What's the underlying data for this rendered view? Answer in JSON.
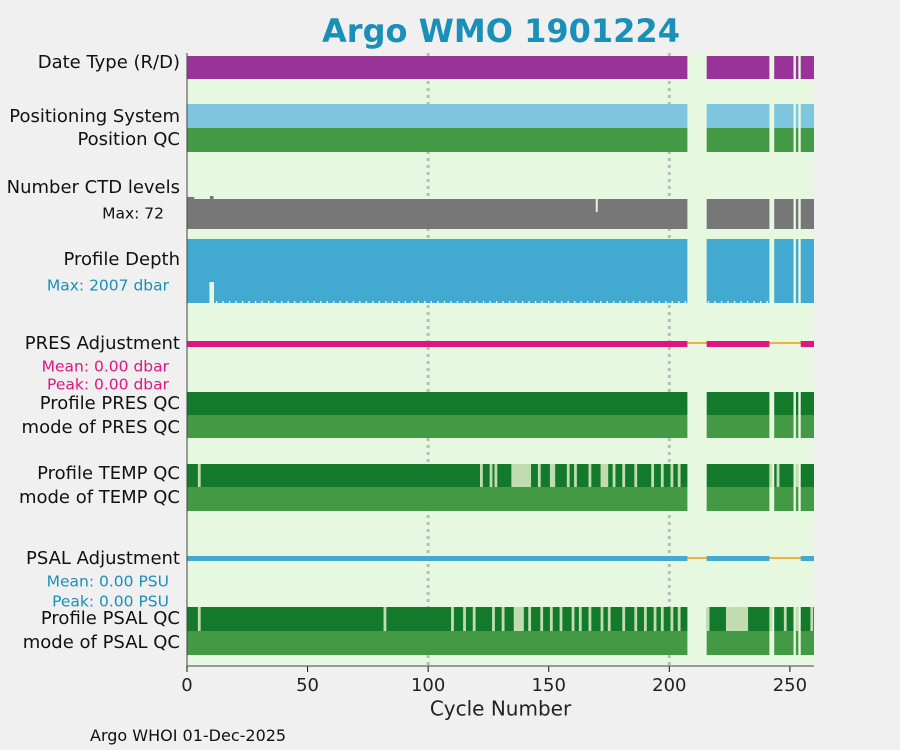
{
  "chart_data": {
    "type": "timeline",
    "title": "Argo WMO 1901224",
    "xlabel": "Cycle Number",
    "xlim": [
      0,
      260
    ],
    "xticks": [
      0,
      50,
      100,
      150,
      200,
      250
    ],
    "vlines": [
      100,
      200
    ],
    "present_segments": [
      [
        0,
        207.5
      ],
      [
        215.5,
        241.5
      ],
      [
        243.5,
        251.5
      ],
      [
        252.5,
        253.5
      ],
      [
        254.5,
        260
      ]
    ],
    "rows": [
      {
        "id": "date-type",
        "label": "Date Type (R/D)",
        "kind": "band",
        "color": "#993399"
      },
      {
        "id": "positioning-system",
        "label": "Positioning System",
        "kind": "band",
        "color": "#7ec6e0"
      },
      {
        "id": "position-qc",
        "label": "Position QC",
        "kind": "band",
        "color": "#449944"
      },
      {
        "id": "number-ctd-levels",
        "label": "Number CTD levels",
        "sublabel": "Max: 72",
        "sublabel_color": "#111111",
        "kind": "levels",
        "color": "#777777"
      },
      {
        "id": "profile-depth",
        "label": "Profile Depth",
        "sublabel": "Max: 2007 dbar",
        "sublabel_color": "#1a8fb8",
        "kind": "depth",
        "color": "#42aad0"
      },
      {
        "id": "pres-adjustment",
        "label": "PRES Adjustment",
        "sublabels": [
          "Mean: 0.00 dbar",
          "Peak: 0.00 dbar"
        ],
        "sublabel_color": "#e0157f",
        "kind": "adjust",
        "color": "#e0157f",
        "gap_color": "#f0b040"
      },
      {
        "id": "profile-pres-qc",
        "label": "Profile PRES QC",
        "kind": "band",
        "color": "#137a2c"
      },
      {
        "id": "mode-pres-qc",
        "label": "mode of PRES QC",
        "kind": "band",
        "color": "#449944"
      },
      {
        "id": "profile-temp-qc",
        "label": "Profile TEMP QC",
        "kind": "qc",
        "color": "#137a2c",
        "light_color": "#c0dcb0",
        "light_cycles": [
          5,
          122,
          126,
          128,
          135,
          136,
          137,
          138,
          139,
          140,
          141,
          142,
          146,
          151,
          152,
          158,
          161,
          167,
          172,
          173,
          174,
          177,
          181,
          186,
          193,
          197,
          201,
          204,
          242,
          245,
          253
        ]
      },
      {
        "id": "mode-temp-qc",
        "label": "mode of TEMP QC",
        "kind": "band",
        "color": "#449944"
      },
      {
        "id": "psal-adjustment",
        "label": "PSAL Adjustment",
        "sublabels": [
          "Mean: 0.00 PSU",
          "Peak: 0.00 PSU"
        ],
        "sublabel_color": "#1a8fb8",
        "kind": "adjust",
        "color": "#42aad0",
        "gap_color": "#f0b040"
      },
      {
        "id": "profile-psal-qc",
        "label": "Profile PSAL QC",
        "kind": "qc",
        "color": "#137a2c",
        "light_color": "#c0dcb0",
        "light_cycles": [
          5,
          82,
          110,
          115,
          119,
          127,
          131,
          136,
          137,
          138,
          139,
          142,
          147,
          151,
          155,
          160,
          163,
          167,
          172,
          175,
          181,
          186,
          190,
          194,
          197,
          201,
          204,
          216,
          224,
          225,
          226,
          227,
          228,
          229,
          230,
          231,
          232,
          242,
          248,
          253,
          259
        ]
      },
      {
        "id": "mode-psal-qc",
        "label": "mode of PSAL QC",
        "kind": "band",
        "color": "#449944"
      }
    ]
  },
  "footer": "Argo WHOI 01-Dec-2025",
  "colors": {
    "plot_bg": "#e6f8e0",
    "title": "#1a8fb8",
    "grid": "#bbbbbb"
  }
}
